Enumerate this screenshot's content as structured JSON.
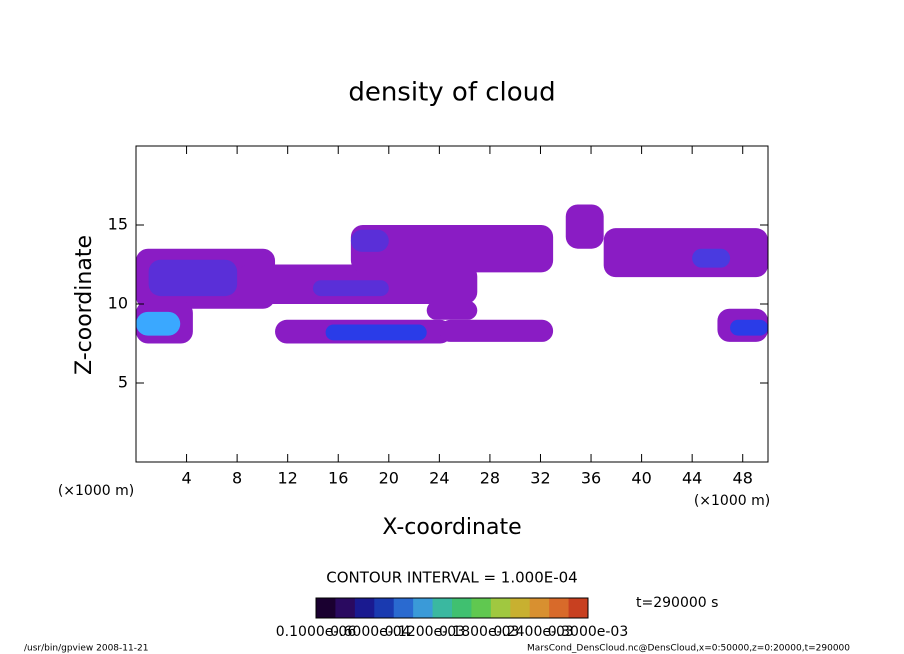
{
  "chart_data": {
    "type": "contour",
    "title": "density of cloud",
    "x_label": "X-coordinate",
    "y_label": "Z-coordinate",
    "x_unit": "(×1000 m)",
    "y_unit": "(×1000 m)",
    "xlim": [
      0,
      50
    ],
    "ylim": [
      0,
      20
    ],
    "xticks": [
      4,
      8,
      12,
      16,
      20,
      24,
      28,
      32,
      36,
      40,
      44,
      48
    ],
    "yticks": [
      5,
      10,
      15
    ],
    "patches": [
      {
        "x": [
          0,
          11
        ],
        "z": [
          9.7,
          13.5
        ],
        "color": "#8a1cc4"
      },
      {
        "x": [
          8,
          27
        ],
        "z": [
          10,
          12.5
        ],
        "color": "#8a1cc4"
      },
      {
        "x": [
          17,
          33
        ],
        "z": [
          12,
          15
        ],
        "color": "#8a1cc4"
      },
      {
        "x": [
          34,
          37
        ],
        "z": [
          13.5,
          16.3
        ],
        "color": "#8a1cc4"
      },
      {
        "x": [
          37,
          50
        ],
        "z": [
          11.7,
          14.8
        ],
        "color": "#8a1cc4"
      },
      {
        "x": [
          0,
          4.5
        ],
        "z": [
          7.5,
          10.2
        ],
        "color": "#8a1cc4"
      },
      {
        "x": [
          11,
          25
        ],
        "z": [
          7.5,
          9
        ],
        "color": "#8a1cc4"
      },
      {
        "x": [
          24,
          33
        ],
        "z": [
          7.6,
          9
        ],
        "color": "#8a1cc4"
      },
      {
        "x": [
          23,
          27
        ],
        "z": [
          9,
          10.2
        ],
        "color": "#8a1cc4"
      },
      {
        "x": [
          46,
          50
        ],
        "z": [
          7.6,
          9.7
        ],
        "color": "#8a1cc4"
      },
      {
        "x": [
          1,
          8
        ],
        "z": [
          10.5,
          12.8
        ],
        "color": "#5a2fd8"
      },
      {
        "x": [
          14,
          20
        ],
        "z": [
          10.5,
          11.5
        ],
        "color": "#5a2fd8"
      },
      {
        "x": [
          17,
          20
        ],
        "z": [
          13.3,
          14.7
        ],
        "color": "#5a2fd8"
      },
      {
        "x": [
          44,
          47
        ],
        "z": [
          12.3,
          13.5
        ],
        "color": "#4a3ae0"
      },
      {
        "x": [
          15,
          23
        ],
        "z": [
          7.7,
          8.7
        ],
        "color": "#2a3ce8"
      },
      {
        "x": [
          47,
          50
        ],
        "z": [
          8,
          9
        ],
        "color": "#2a3ce8"
      },
      {
        "x": [
          0,
          3.5
        ],
        "z": [
          8,
          9.5
        ],
        "color": "#3aa8ff"
      }
    ],
    "contour_interval": "CONTOUR INTERVAL = 1.000E-04",
    "time": "t=290000 s",
    "colorbar": {
      "colors": [
        "#1a0030",
        "#2a0a60",
        "#1a1a90",
        "#1a3ab0",
        "#2a6ad0",
        "#3a9ad8",
        "#3ab8a0",
        "#40c070",
        "#60c850",
        "#a0c840",
        "#c8b030",
        "#d89030",
        "#d86a2a",
        "#c84020"
      ],
      "labels": [
        {
          "value": 1e-07,
          "label": "0.1000e-06"
        },
        {
          "value": 6e-05,
          "label": "0.6000e-04"
        },
        {
          "value": 0.00012,
          "label": "0.1200e-03"
        },
        {
          "value": 0.00018,
          "label": "0.1800e-03"
        },
        {
          "value": 0.00024,
          "label": "0.2400e-03"
        },
        {
          "value": 0.0003,
          "label": "0.3000e-03"
        }
      ]
    },
    "footer_left": "/usr/bin/gpview   2008-11-21",
    "footer_right": "MarsCond_DensCloud.nc@DensCloud,x=0:50000,z=0:20000,t=290000"
  }
}
